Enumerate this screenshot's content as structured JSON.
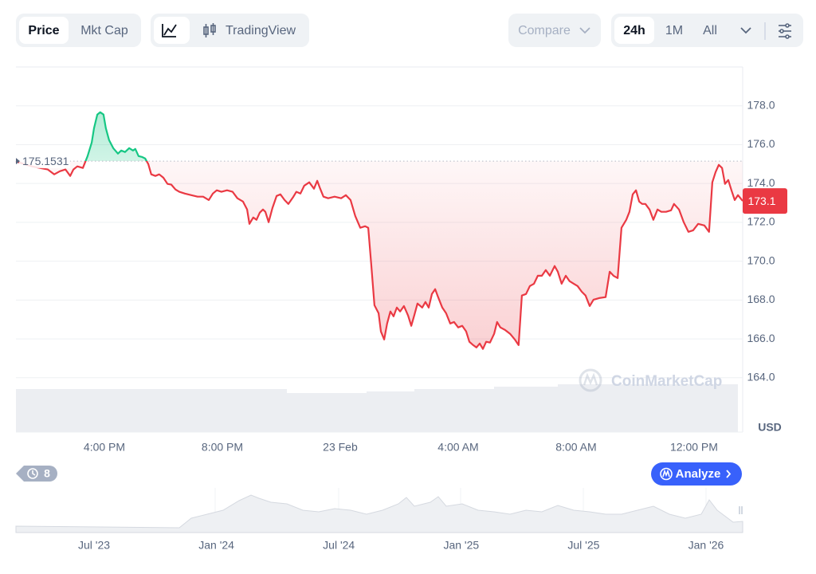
{
  "toolbar": {
    "tabs": [
      "Price",
      "Mkt Cap"
    ],
    "view_tools": [
      "TradingView"
    ],
    "compare": "Compare",
    "ranges": [
      "24h",
      "1M",
      "All"
    ]
  },
  "chart_data": {
    "type": "line",
    "x": [
      13.0,
      13.27,
      13.54,
      13.81,
      14.08,
      14.3,
      14.49,
      14.68,
      14.84,
      14.95,
      15.08,
      15.27,
      15.43,
      15.57,
      15.65,
      15.76,
      15.86,
      15.97,
      16.05,
      16.16,
      16.3,
      16.46,
      16.57,
      16.7,
      16.84,
      16.97,
      17.05,
      17.16,
      17.27,
      17.38,
      17.49,
      17.59,
      17.73,
      17.86,
      18.0,
      18.14,
      18.27,
      18.41,
      18.54,
      18.73,
      18.95,
      19.16,
      19.35,
      19.54,
      19.68,
      19.81,
      19.97,
      20.16,
      20.35,
      20.51,
      20.7,
      20.84,
      20.92,
      21.05,
      21.16,
      21.27,
      21.38,
      21.46,
      21.57,
      21.7,
      21.84,
      21.97,
      22.11,
      22.24,
      22.41,
      22.51,
      22.65,
      22.78,
      22.95,
      23.11,
      23.22,
      23.32,
      23.43,
      23.59,
      23.81,
      24.03,
      24.19,
      24.35,
      24.51,
      24.68,
      24.84,
      24.95,
      25.05,
      25.16,
      25.3,
      25.38,
      25.49,
      25.59,
      25.7,
      25.81,
      25.92,
      26.03,
      26.16,
      26.3,
      26.41,
      26.51,
      26.62,
      26.78,
      26.89,
      27.0,
      27.11,
      27.22,
      27.32,
      27.46,
      27.59,
      27.73,
      27.86,
      28.0,
      28.14,
      28.27,
      28.38,
      28.51,
      28.62,
      28.73,
      28.84,
      28.95,
      29.08,
      29.22,
      29.32,
      29.43,
      29.59,
      29.76,
      29.92,
      30.05,
      30.16,
      30.3,
      30.43,
      30.57,
      30.7,
      30.84,
      30.97,
      31.11,
      31.27,
      31.38,
      31.51,
      31.65,
      31.78,
      31.92,
      32.05,
      32.19,
      32.32,
      32.46,
      32.59,
      32.78,
      33.0,
      33.14,
      33.27,
      33.41,
      33.54,
      33.7,
      33.81,
      33.92,
      34.03,
      34.14,
      34.24,
      34.35,
      34.49,
      34.62,
      34.76,
      34.89,
      35.05,
      35.22,
      35.32,
      35.49,
      35.65,
      35.81,
      35.97,
      36.14,
      36.35,
      36.51,
      36.62,
      36.73,
      36.84,
      36.95,
      37.05,
      37.16,
      37.27,
      37.38,
      37.49,
      37.65
    ],
    "values": [
      175.15,
      175.0,
      174.88,
      174.8,
      174.72,
      174.47,
      174.63,
      174.72,
      174.39,
      174.72,
      174.88,
      174.8,
      175.41,
      176.11,
      176.85,
      177.55,
      177.67,
      177.55,
      176.85,
      176.23,
      175.82,
      175.54,
      175.7,
      175.62,
      175.82,
      175.7,
      175.78,
      175.41,
      175.37,
      175.29,
      175.0,
      174.47,
      174.39,
      174.47,
      174.3,
      173.98,
      173.94,
      173.69,
      173.57,
      173.48,
      173.4,
      173.32,
      173.32,
      173.15,
      173.48,
      173.65,
      173.57,
      173.65,
      173.57,
      173.24,
      173.07,
      172.66,
      171.92,
      172.25,
      172.13,
      172.5,
      172.66,
      172.54,
      172.01,
      172.74,
      173.36,
      173.44,
      173.15,
      172.95,
      173.32,
      173.57,
      173.48,
      173.89,
      174.06,
      173.73,
      174.14,
      173.73,
      173.32,
      173.24,
      173.32,
      173.24,
      173.4,
      173.15,
      172.33,
      171.72,
      171.8,
      171.72,
      169.87,
      167.73,
      167.32,
      166.38,
      165.97,
      166.79,
      167.41,
      167.16,
      167.61,
      167.41,
      167.69,
      167.2,
      166.67,
      167.2,
      167.82,
      167.61,
      167.9,
      167.61,
      168.31,
      168.56,
      168.15,
      167.61,
      167.32,
      166.79,
      166.87,
      166.59,
      166.67,
      166.38,
      165.85,
      165.68,
      165.56,
      165.76,
      165.48,
      165.85,
      165.81,
      166.26,
      166.87,
      166.59,
      166.46,
      166.26,
      165.97,
      165.68,
      168.23,
      168.31,
      168.72,
      168.84,
      169.25,
      169.25,
      169.54,
      169.25,
      169.75,
      169.46,
      168.84,
      169.25,
      168.97,
      168.84,
      168.72,
      168.43,
      168.23,
      167.69,
      168.02,
      168.1,
      168.15,
      169.46,
      169.25,
      169.13,
      171.72,
      172.13,
      172.54,
      173.44,
      173.65,
      173.07,
      172.95,
      172.95,
      172.66,
      172.13,
      172.66,
      172.54,
      172.54,
      172.62,
      172.95,
      172.66,
      172.01,
      171.51,
      171.59,
      171.92,
      171.84,
      171.51,
      174.06,
      174.59,
      174.96,
      174.8,
      173.98,
      174.18,
      173.65,
      173.15,
      173.4,
      173.1
    ],
    "colors": {
      "up": "#16c784",
      "down": "#ea3943"
    },
    "baseline": 175.1531,
    "price_tag": 173.1,
    "unit": "USD",
    "watermark": "CoinMarketCap",
    "xlim": [
      13,
      37.65
    ],
    "xticks": [
      {
        "value": 16,
        "label": "4:00 PM"
      },
      {
        "value": 20,
        "label": "8:00 PM"
      },
      {
        "value": 24,
        "label": "23 Feb"
      },
      {
        "value": 28,
        "label": "4:00 AM"
      },
      {
        "value": 32,
        "label": "8:00 AM"
      },
      {
        "value": 36,
        "label": "12:00 PM"
      }
    ],
    "ylim": [
      161.2,
      180
    ],
    "yticks": [
      {
        "value": 164,
        "label": "164.0"
      },
      {
        "value": 166,
        "label": "166.0"
      },
      {
        "value": 168,
        "label": "168.0"
      },
      {
        "value": 170,
        "label": "170.0"
      },
      {
        "value": 172,
        "label": "172.0"
      },
      {
        "value": 174,
        "label": "174.0"
      },
      {
        "value": 176,
        "label": "176.0"
      },
      {
        "value": 178,
        "label": "178.0"
      }
    ],
    "grid": true
  },
  "events_count": 8,
  "analyze_button": "Analyze",
  "navigator": {
    "labels": [
      "Jul '23",
      "Jan '24",
      "Jul '24",
      "Jan '25",
      "Jul '25",
      "Jan '26"
    ]
  }
}
